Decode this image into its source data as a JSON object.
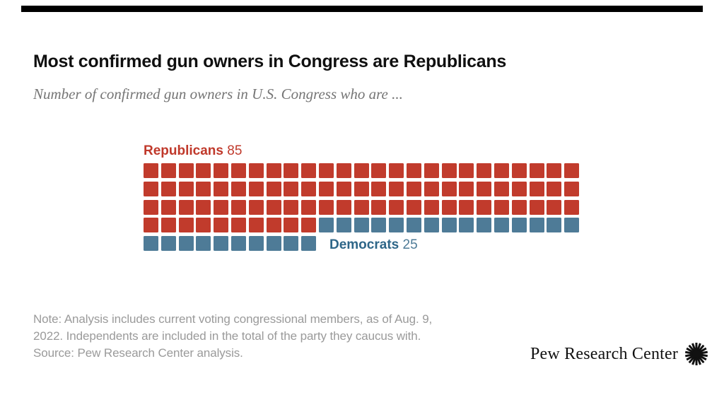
{
  "page": {
    "background": "#ffffff",
    "top_bar_color": "#000000"
  },
  "header": {
    "title": "Most confirmed gun owners in Congress are Republicans",
    "subtitle": "Number of confirmed gun owners in U.S. Congress who are ..."
  },
  "chart_data": {
    "type": "waffle",
    "title": "Most confirmed gun owners in Congress are Republicans",
    "subtitle": "Number of confirmed gun owners in U.S. Congress who are ...",
    "categories": [
      "Republicans",
      "Democrats"
    ],
    "values": [
      85,
      25
    ],
    "total_units": 110,
    "grid_columns": 25,
    "grid_rows": 5,
    "fill_order": "row-major, Republicans first",
    "colors": {
      "republicans_square": "#c13b2c",
      "republicans_label": "#c0392b",
      "democrats_square": "#4e7b97",
      "democrats_label": "#2e6688"
    },
    "labels": {
      "republicans_name": "Republicans",
      "republicans_value": "85",
      "democrats_name": "Democrats",
      "democrats_value": "25"
    },
    "legend_position": "inline-with-blocks",
    "note": "Note: Analysis includes current voting congressional members, as of Aug. 9, 2022. Independents are included in the total of the party they caucus with.",
    "source": "Source: Pew Research Center analysis."
  },
  "footer": {
    "note_lines": [
      "Note: Analysis includes current voting congressional members, as of Aug. 9,",
      "2022. Independents are included in the total of the party they caucus with.",
      "Source: Pew Research Center analysis."
    ],
    "logo_text": "Pew Research Center"
  }
}
